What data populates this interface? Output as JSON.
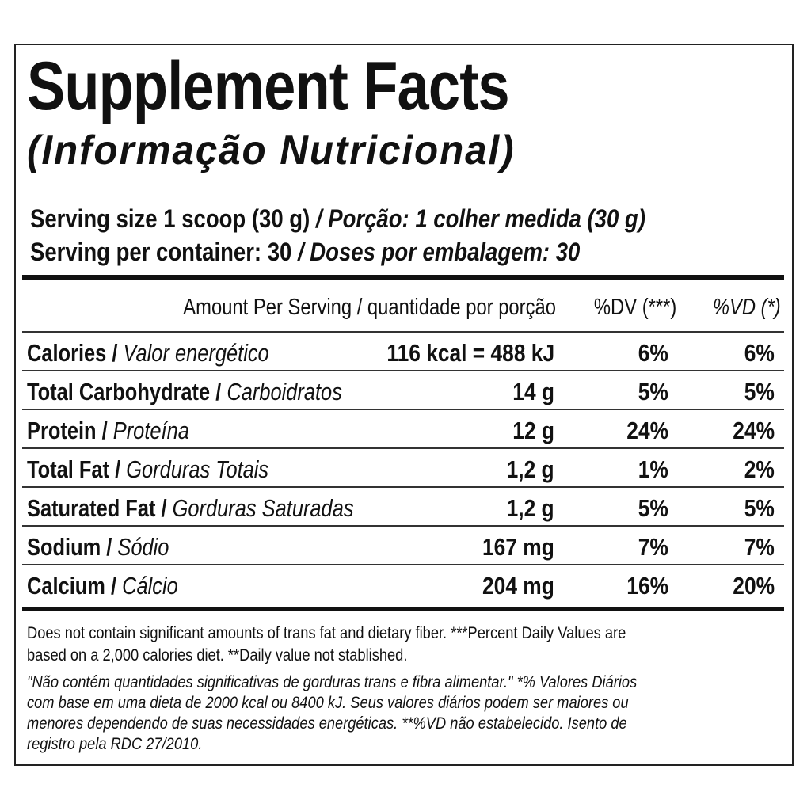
{
  "title": "Supplement Facts",
  "subtitle": "(Informação Nutricional)",
  "serving_size": {
    "en": "Serving size 1 scoop (30 g)",
    "pt": "/ Porção: 1 colher medida (30 g)"
  },
  "servings": {
    "en": "Serving per container: 30",
    "pt": "/ Doses por embalagem: 30"
  },
  "header": {
    "amount": "Amount Per Serving / quantidade por porção",
    "dv": "%DV (***)",
    "vd": "%VD (*)"
  },
  "rows": [
    {
      "en": "Calories /",
      "pt": "Valor energético",
      "amount": "116 kcal = 488 kJ",
      "dv": "6%",
      "vd": "6%"
    },
    {
      "en": "Total Carbohydrate /",
      "pt": "Carboidratos",
      "amount": "14 g",
      "dv": "5%",
      "vd": "5%"
    },
    {
      "en": "Protein /",
      "pt": "Proteína",
      "amount": "12 g",
      "dv": "24%",
      "vd": "24%"
    },
    {
      "en": "Total Fat /",
      "pt": "Gorduras Totais",
      "amount": "1,2 g",
      "dv": "1%",
      "vd": "2%"
    },
    {
      "en": "Saturated Fat /",
      "pt": "Gorduras Saturadas",
      "amount": "1,2 g",
      "dv": "5%",
      "vd": "5%"
    },
    {
      "en": "Sodium /",
      "pt": "Sódio",
      "amount": "167 mg",
      "dv": "7%",
      "vd": "7%"
    },
    {
      "en": "Calcium /",
      "pt": "Cálcio",
      "amount": "204 mg",
      "dv": "16%",
      "vd": "20%"
    }
  ],
  "footnote_en": [
    "Does not contain significant amounts of trans fat and dietary fiber. ***Percent Daily Values are",
    "based on a 2,000 calories diet. **Daily value not stablished."
  ],
  "footnote_pt": [
    "\"Não contém quantidades significativas de gorduras trans e fibra alimentar.\" *% Valores Diários",
    "com base em uma dieta de 2000 kcal ou 8400 kJ. Seus valores diários podem ser maiores ou",
    "menores dependendo de suas necessidades energéticas. **%VD não estabelecido. Isento de",
    "registro pela RDC 27/2010."
  ]
}
